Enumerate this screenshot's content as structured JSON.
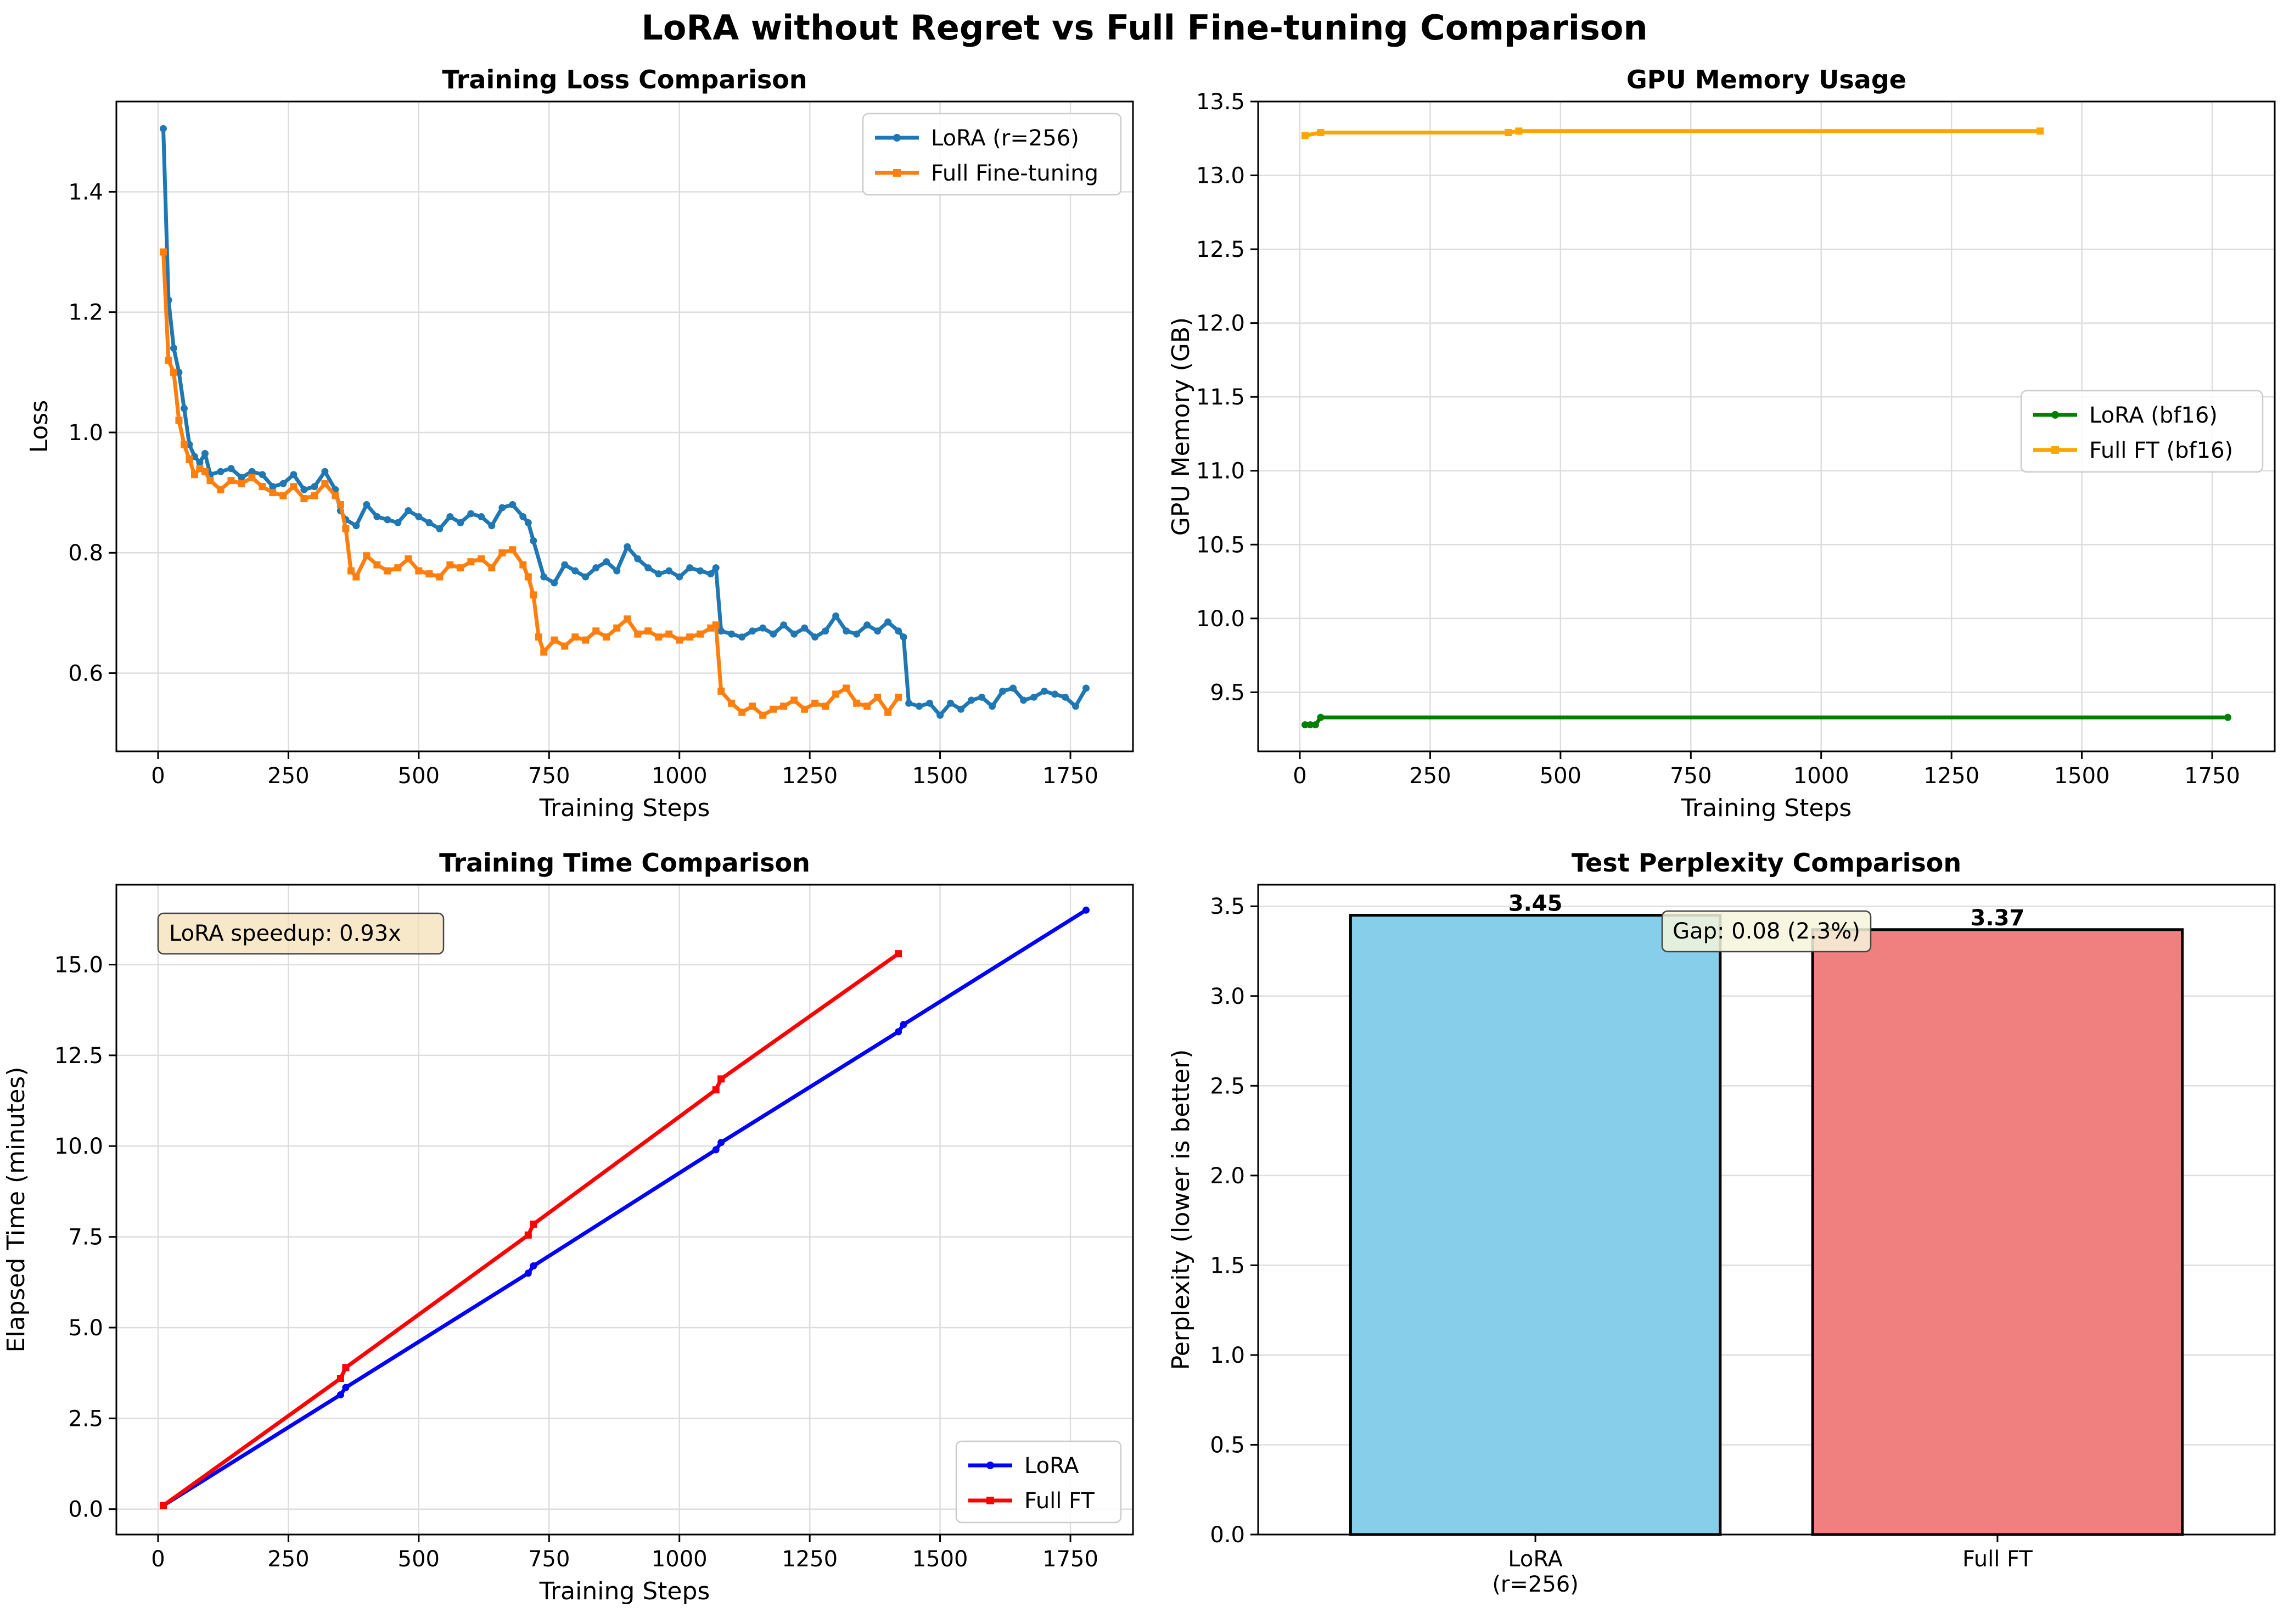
{
  "figure": {
    "title": "LoRA without Regret vs Full Fine-tuning Comparison"
  },
  "chart_data": [
    {
      "type": "line",
      "title": "Training Loss Comparison",
      "xlabel": "Training Steps",
      "ylabel": "Loss",
      "xlim": [
        -80,
        1870
      ],
      "ylim": [
        0.47,
        1.55
      ],
      "xticks": [
        0,
        250,
        500,
        750,
        1000,
        1250,
        1500,
        1750
      ],
      "yticks": [
        0.6,
        0.8,
        1.0,
        1.2,
        1.4
      ],
      "ytick_labels": [
        "0.6",
        "0.8",
        "1.0",
        "1.2",
        "1.4"
      ],
      "grid": true,
      "legend": "top-right",
      "series": [
        {
          "name": "LoRA (r=256)",
          "color": "#1f77b4",
          "marker": "circle",
          "x": [
            10,
            20,
            30,
            40,
            50,
            60,
            70,
            80,
            90,
            100,
            120,
            140,
            160,
            180,
            200,
            220,
            240,
            260,
            280,
            300,
            320,
            340,
            350,
            360,
            380,
            400,
            420,
            440,
            460,
            480,
            500,
            520,
            540,
            560,
            580,
            600,
            620,
            640,
            660,
            680,
            700,
            710,
            720,
            740,
            760,
            780,
            800,
            820,
            840,
            860,
            880,
            900,
            920,
            940,
            960,
            980,
            1000,
            1020,
            1040,
            1060,
            1070,
            1080,
            1100,
            1120,
            1140,
            1160,
            1180,
            1200,
            1220,
            1240,
            1260,
            1280,
            1300,
            1320,
            1340,
            1360,
            1380,
            1400,
            1420,
            1430,
            1440,
            1460,
            1480,
            1500,
            1520,
            1540,
            1560,
            1580,
            1600,
            1620,
            1640,
            1660,
            1680,
            1700,
            1720,
            1740,
            1760,
            1780
          ],
          "y": [
            1.505,
            1.22,
            1.14,
            1.1,
            1.04,
            0.98,
            0.96,
            0.95,
            0.965,
            0.93,
            0.935,
            0.94,
            0.925,
            0.935,
            0.93,
            0.91,
            0.915,
            0.93,
            0.905,
            0.91,
            0.935,
            0.905,
            0.87,
            0.855,
            0.845,
            0.88,
            0.86,
            0.855,
            0.85,
            0.87,
            0.86,
            0.85,
            0.84,
            0.86,
            0.85,
            0.865,
            0.86,
            0.845,
            0.875,
            0.88,
            0.86,
            0.85,
            0.82,
            0.76,
            0.75,
            0.78,
            0.77,
            0.76,
            0.775,
            0.785,
            0.77,
            0.81,
            0.79,
            0.775,
            0.765,
            0.77,
            0.76,
            0.775,
            0.77,
            0.765,
            0.775,
            0.67,
            0.665,
            0.66,
            0.67,
            0.675,
            0.665,
            0.68,
            0.665,
            0.675,
            0.66,
            0.67,
            0.695,
            0.67,
            0.665,
            0.68,
            0.67,
            0.685,
            0.67,
            0.66,
            0.55,
            0.545,
            0.55,
            0.53,
            0.55,
            0.54,
            0.555,
            0.56,
            0.545,
            0.57,
            0.575,
            0.555,
            0.56,
            0.57,
            0.565,
            0.56,
            0.545,
            0.575
          ]
        },
        {
          "name": "Full Fine-tuning",
          "color": "#ff7f0e",
          "marker": "square",
          "x": [
            10,
            20,
            30,
            40,
            50,
            60,
            70,
            80,
            90,
            100,
            120,
            140,
            160,
            180,
            200,
            220,
            240,
            260,
            280,
            300,
            320,
            340,
            350,
            360,
            370,
            380,
            400,
            420,
            440,
            460,
            480,
            500,
            520,
            540,
            560,
            580,
            600,
            620,
            640,
            660,
            680,
            700,
            710,
            720,
            730,
            740,
            760,
            780,
            800,
            820,
            840,
            860,
            880,
            900,
            920,
            940,
            960,
            980,
            1000,
            1020,
            1040,
            1060,
            1070,
            1080,
            1100,
            1120,
            1140,
            1160,
            1180,
            1200,
            1220,
            1240,
            1260,
            1280,
            1300,
            1320,
            1340,
            1360,
            1380,
            1400,
            1420
          ],
          "y": [
            1.3,
            1.12,
            1.1,
            1.02,
            0.98,
            0.955,
            0.93,
            0.94,
            0.935,
            0.92,
            0.905,
            0.92,
            0.915,
            0.925,
            0.91,
            0.9,
            0.895,
            0.91,
            0.89,
            0.895,
            0.915,
            0.895,
            0.88,
            0.84,
            0.77,
            0.76,
            0.795,
            0.78,
            0.77,
            0.775,
            0.79,
            0.77,
            0.765,
            0.76,
            0.78,
            0.775,
            0.785,
            0.79,
            0.775,
            0.8,
            0.805,
            0.78,
            0.76,
            0.73,
            0.66,
            0.635,
            0.655,
            0.645,
            0.66,
            0.655,
            0.67,
            0.66,
            0.675,
            0.69,
            0.665,
            0.67,
            0.66,
            0.665,
            0.655,
            0.66,
            0.665,
            0.675,
            0.68,
            0.57,
            0.55,
            0.535,
            0.545,
            0.53,
            0.54,
            0.545,
            0.555,
            0.54,
            0.55,
            0.545,
            0.565,
            0.575,
            0.55,
            0.545,
            0.56,
            0.535,
            0.56
          ]
        }
      ]
    },
    {
      "type": "line",
      "title": "GPU Memory Usage",
      "xlabel": "Training Steps",
      "ylabel": "GPU Memory (GB)",
      "xlim": [
        -80,
        1870
      ],
      "ylim": [
        9.1,
        13.5
      ],
      "xticks": [
        0,
        250,
        500,
        750,
        1000,
        1250,
        1500,
        1750
      ],
      "yticks": [
        9.5,
        10.0,
        10.5,
        11.0,
        11.5,
        12.0,
        12.5,
        13.0,
        13.5
      ],
      "ytick_labels": [
        "9.5",
        "10.0",
        "10.5",
        "11.0",
        "11.5",
        "12.0",
        "12.5",
        "13.0",
        "13.5"
      ],
      "grid": true,
      "legend": "center-right",
      "series": [
        {
          "name": "LoRA (bf16)",
          "color": "#008000",
          "marker": "circle",
          "x": [
            10,
            20,
            30,
            40,
            1780
          ],
          "y": [
            9.28,
            9.28,
            9.28,
            9.33,
            9.33
          ]
        },
        {
          "name": "Full FT (bf16)",
          "color": "#ffa500",
          "marker": "square",
          "x": [
            10,
            40,
            400,
            420,
            1420
          ],
          "y": [
            13.27,
            13.29,
            13.29,
            13.3,
            13.3
          ]
        }
      ]
    },
    {
      "type": "line",
      "title": "Training Time Comparison",
      "xlabel": "Training Steps",
      "ylabel": "Elapsed Time (minutes)",
      "xlim": [
        -80,
        1870
      ],
      "ylim": [
        -0.7,
        17.2
      ],
      "xticks": [
        0,
        250,
        500,
        750,
        1000,
        1250,
        1500,
        1750
      ],
      "yticks": [
        0.0,
        2.5,
        5.0,
        7.5,
        10.0,
        12.5,
        15.0
      ],
      "ytick_labels": [
        "0.0",
        "2.5",
        "5.0",
        "7.5",
        "10.0",
        "12.5",
        "15.0"
      ],
      "grid": true,
      "legend": "bottom-right",
      "annotation": "LoRA speedup: 0.93x",
      "series": [
        {
          "name": "LoRA",
          "color": "#0000ff",
          "marker": "circle",
          "x": [
            10,
            350,
            360,
            710,
            720,
            1070,
            1080,
            1420,
            1430,
            1780
          ],
          "y": [
            0.1,
            3.15,
            3.35,
            6.5,
            6.7,
            9.9,
            10.1,
            13.15,
            13.35,
            16.5
          ]
        },
        {
          "name": "Full FT",
          "color": "#ff0000",
          "marker": "square",
          "x": [
            10,
            350,
            360,
            710,
            720,
            1070,
            1080,
            1420
          ],
          "y": [
            0.1,
            3.6,
            3.9,
            7.55,
            7.85,
            11.55,
            11.85,
            15.3
          ]
        }
      ]
    },
    {
      "type": "bar",
      "title": "Test Perplexity Comparison",
      "xlabel": "",
      "ylabel": "Perplexity (lower is better)",
      "categories": [
        [
          "LoRA",
          "(r=256)"
        ],
        [
          "Full FT"
        ]
      ],
      "values": [
        3.45,
        3.37
      ],
      "value_labels": [
        "3.45",
        "3.37"
      ],
      "colors": [
        "#87ceeb",
        "#f08080"
      ],
      "ylim": [
        0,
        3.62
      ],
      "yticks": [
        0.0,
        0.5,
        1.0,
        1.5,
        2.0,
        2.5,
        3.0,
        3.5
      ],
      "ytick_labels": [
        "0.0",
        "0.5",
        "1.0",
        "1.5",
        "2.0",
        "2.5",
        "3.0",
        "3.5"
      ],
      "grid": true,
      "annotation": "Gap: 0.08 (2.3%)"
    }
  ]
}
